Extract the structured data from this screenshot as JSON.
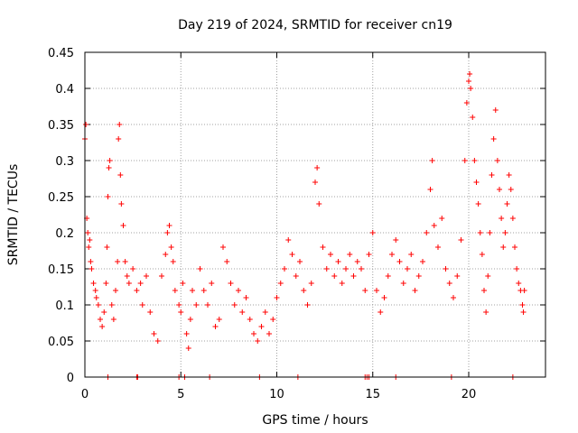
{
  "chart_data": {
    "type": "scatter",
    "title": "Day 219 of 2024, SRMTID for receiver cn19",
    "xlabel": "GPS time / hours",
    "ylabel": "SRMTID / TECUs",
    "xlim": [
      0,
      24
    ],
    "ylim": [
      0,
      0.45
    ],
    "x_ticks": [
      0,
      5,
      10,
      15,
      20
    ],
    "x_tick_labels": [
      "0",
      "5",
      "10",
      "15",
      "20"
    ],
    "y_ticks": [
      0,
      0.05,
      0.1,
      0.15,
      0.2,
      0.25,
      0.3,
      0.35,
      0.4,
      0.45
    ],
    "y_tick_labels": [
      "0",
      "0.05",
      "0.1",
      "0.15",
      "0.2",
      "0.25",
      "0.3",
      "0.35",
      "0.4",
      "0.45"
    ],
    "grid": true,
    "marker": "+",
    "series": [
      {
        "name": "SRMTID",
        "color": "#ff0000",
        "points": [
          [
            0.0,
            0.33
          ],
          [
            0.05,
            0.35
          ],
          [
            0.1,
            0.22
          ],
          [
            0.15,
            0.2
          ],
          [
            0.2,
            0.18
          ],
          [
            0.25,
            0.19
          ],
          [
            0.3,
            0.16
          ],
          [
            0.35,
            0.15
          ],
          [
            0.45,
            0.13
          ],
          [
            0.55,
            0.12
          ],
          [
            0.6,
            0.11
          ],
          [
            0.7,
            0.1
          ],
          [
            0.8,
            0.08
          ],
          [
            0.9,
            0.07
          ],
          [
            1.0,
            0.09
          ],
          [
            1.1,
            0.13
          ],
          [
            1.15,
            0.18
          ],
          [
            1.2,
            0.25
          ],
          [
            1.25,
            0.29
          ],
          [
            1.3,
            0.3
          ],
          [
            1.4,
            0.1
          ],
          [
            1.5,
            0.08
          ],
          [
            1.6,
            0.12
          ],
          [
            1.7,
            0.16
          ],
          [
            1.75,
            0.33
          ],
          [
            1.8,
            0.35
          ],
          [
            1.85,
            0.28
          ],
          [
            1.9,
            0.24
          ],
          [
            2.0,
            0.21
          ],
          [
            2.1,
            0.16
          ],
          [
            2.2,
            0.14
          ],
          [
            2.3,
            0.13
          ],
          [
            2.5,
            0.15
          ],
          [
            2.7,
            0.12
          ],
          [
            2.9,
            0.13
          ],
          [
            3.0,
            0.1
          ],
          [
            3.2,
            0.14
          ],
          [
            3.4,
            0.09
          ],
          [
            3.6,
            0.06
          ],
          [
            3.8,
            0.05
          ],
          [
            4.0,
            0.14
          ],
          [
            4.2,
            0.17
          ],
          [
            4.3,
            0.2
          ],
          [
            4.4,
            0.21
          ],
          [
            4.5,
            0.18
          ],
          [
            4.6,
            0.16
          ],
          [
            4.7,
            0.12
          ],
          [
            4.9,
            0.1
          ],
          [
            5.0,
            0.09
          ],
          [
            5.1,
            0.13
          ],
          [
            5.3,
            0.06
          ],
          [
            5.4,
            0.04
          ],
          [
            5.5,
            0.08
          ],
          [
            5.6,
            0.12
          ],
          [
            5.8,
            0.1
          ],
          [
            6.0,
            0.15
          ],
          [
            6.2,
            0.12
          ],
          [
            6.4,
            0.1
          ],
          [
            6.6,
            0.13
          ],
          [
            6.8,
            0.07
          ],
          [
            7.0,
            0.08
          ],
          [
            7.2,
            0.18
          ],
          [
            7.4,
            0.16
          ],
          [
            7.6,
            0.13
          ],
          [
            7.8,
            0.1
          ],
          [
            8.0,
            0.12
          ],
          [
            8.2,
            0.09
          ],
          [
            8.4,
            0.11
          ],
          [
            8.6,
            0.08
          ],
          [
            8.8,
            0.06
          ],
          [
            9.0,
            0.05
          ],
          [
            9.2,
            0.07
          ],
          [
            9.4,
            0.09
          ],
          [
            9.6,
            0.06
          ],
          [
            9.8,
            0.08
          ],
          [
            10.0,
            0.11
          ],
          [
            10.2,
            0.13
          ],
          [
            10.4,
            0.15
          ],
          [
            10.6,
            0.19
          ],
          [
            10.8,
            0.17
          ],
          [
            11.0,
            0.14
          ],
          [
            11.2,
            0.16
          ],
          [
            11.4,
            0.12
          ],
          [
            11.6,
            0.1
          ],
          [
            11.8,
            0.13
          ],
          [
            12.0,
            0.27
          ],
          [
            12.1,
            0.29
          ],
          [
            12.2,
            0.24
          ],
          [
            12.4,
            0.18
          ],
          [
            12.6,
            0.15
          ],
          [
            12.8,
            0.17
          ],
          [
            13.0,
            0.14
          ],
          [
            13.2,
            0.16
          ],
          [
            13.4,
            0.13
          ],
          [
            13.6,
            0.15
          ],
          [
            13.8,
            0.17
          ],
          [
            14.0,
            0.14
          ],
          [
            14.2,
            0.16
          ],
          [
            14.4,
            0.15
          ],
          [
            14.6,
            0.12
          ],
          [
            14.8,
            0.17
          ],
          [
            15.0,
            0.2
          ],
          [
            15.2,
            0.12
          ],
          [
            15.4,
            0.09
          ],
          [
            15.6,
            0.11
          ],
          [
            15.8,
            0.14
          ],
          [
            16.0,
            0.17
          ],
          [
            16.2,
            0.19
          ],
          [
            16.4,
            0.16
          ],
          [
            16.6,
            0.13
          ],
          [
            16.8,
            0.15
          ],
          [
            17.0,
            0.17
          ],
          [
            17.2,
            0.12
          ],
          [
            17.4,
            0.14
          ],
          [
            17.6,
            0.16
          ],
          [
            17.8,
            0.2
          ],
          [
            18.0,
            0.26
          ],
          [
            18.1,
            0.3
          ],
          [
            18.2,
            0.21
          ],
          [
            18.4,
            0.18
          ],
          [
            18.6,
            0.22
          ],
          [
            18.8,
            0.15
          ],
          [
            19.0,
            0.13
          ],
          [
            19.2,
            0.11
          ],
          [
            19.4,
            0.14
          ],
          [
            19.6,
            0.19
          ],
          [
            19.8,
            0.3
          ],
          [
            19.9,
            0.38
          ],
          [
            20.0,
            0.41
          ],
          [
            20.05,
            0.42
          ],
          [
            20.1,
            0.4
          ],
          [
            20.2,
            0.36
          ],
          [
            20.3,
            0.3
          ],
          [
            20.4,
            0.27
          ],
          [
            20.5,
            0.24
          ],
          [
            20.6,
            0.2
          ],
          [
            20.7,
            0.17
          ],
          [
            20.8,
            0.12
          ],
          [
            20.9,
            0.09
          ],
          [
            21.0,
            0.14
          ],
          [
            21.1,
            0.2
          ],
          [
            21.2,
            0.28
          ],
          [
            21.3,
            0.33
          ],
          [
            21.4,
            0.37
          ],
          [
            21.5,
            0.3
          ],
          [
            21.6,
            0.26
          ],
          [
            21.7,
            0.22
          ],
          [
            21.8,
            0.18
          ],
          [
            21.9,
            0.2
          ],
          [
            22.0,
            0.24
          ],
          [
            22.1,
            0.28
          ],
          [
            22.2,
            0.26
          ],
          [
            22.3,
            0.22
          ],
          [
            22.4,
            0.18
          ],
          [
            22.5,
            0.15
          ],
          [
            22.6,
            0.13
          ],
          [
            22.7,
            0.12
          ],
          [
            22.8,
            0.1
          ],
          [
            22.85,
            0.09
          ],
          [
            22.9,
            0.12
          ]
        ],
        "zero_points": [
          1.2,
          2.7,
          2.75,
          4.9,
          5.2,
          6.5,
          9.1,
          11.1,
          14.6,
          14.7,
          14.8,
          16.2,
          19.1,
          22.3
        ]
      }
    ]
  }
}
